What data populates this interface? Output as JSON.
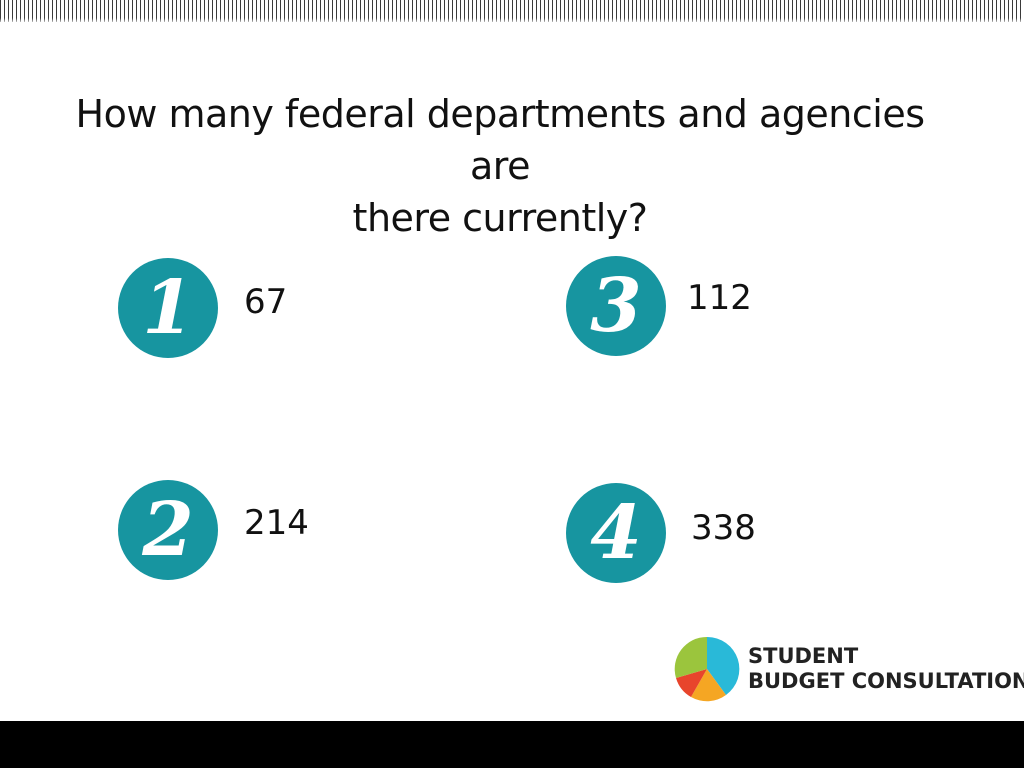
{
  "question": {
    "line1": "How many federal departments and agencies are",
    "line2": "there currently?"
  },
  "options": [
    {
      "number": "1",
      "value": "67"
    },
    {
      "number": "2",
      "value": "214"
    },
    {
      "number": "3",
      "value": "112"
    },
    {
      "number": "4",
      "value": "338"
    }
  ],
  "logo": {
    "line1": "STUDENT",
    "line2": "BUDGET CONSULTATION",
    "colors": [
      "#29b9d8",
      "#f5a623",
      "#e8452c",
      "#9bc53d"
    ]
  },
  "colors": {
    "badge": "#1795a0",
    "footer": "#000000"
  }
}
